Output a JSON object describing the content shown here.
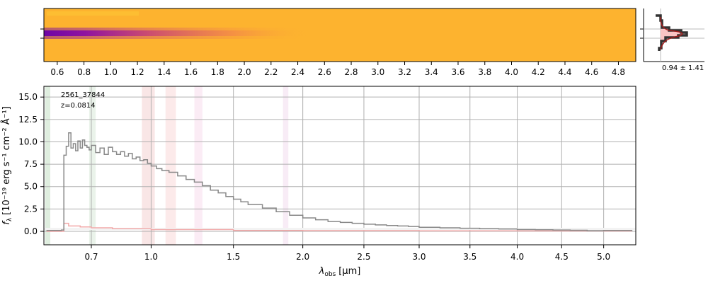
{
  "chart_data": [
    {
      "type": "heatmap",
      "name": "2D spectrum",
      "x_tick_labels": [
        "0.6",
        "0.8",
        "1.0",
        "1.2",
        "1.4",
        "1.6",
        "1.8",
        "2.0",
        "2.2",
        "2.4",
        "2.6",
        "2.8",
        "3.0",
        "3.2",
        "3.4",
        "3.6",
        "3.8",
        "4.0",
        "4.2",
        "4.4",
        "4.6",
        "4.8"
      ],
      "colormap": [
        "#fdb32f",
        "#f48849",
        "#d5546e",
        "#b02991",
        "#8405a7",
        "#5d01a6"
      ],
      "profile_label": "0.94 ± 1.41"
    },
    {
      "type": "line",
      "name": "1D spectrum",
      "source_id": "2561_37844",
      "redshift": "z=0.0814",
      "xlabel_main": "λ",
      "xlabel_sub": "obs",
      "xlabel_unit": "[μm]",
      "ylabel_main": "f",
      "ylabel_sub": "λ",
      "ylabel_unit": "[10⁻¹⁹ erg s⁻¹ cm⁻² Å⁻¹]",
      "x_ticks": [
        "0.7",
        "1.0",
        "1.5",
        "2.0",
        "2.5",
        "3.0",
        "3.5",
        "4.0",
        "4.5",
        "5.0"
      ],
      "x_tick_values": [
        0.7,
        1.0,
        1.5,
        2.0,
        2.5,
        3.0,
        3.5,
        4.0,
        4.5,
        5.0
      ],
      "y_ticks": [
        "0.0",
        "2.5",
        "5.0",
        "7.5",
        "10.0",
        "12.5",
        "15.0"
      ],
      "y_tick_values": [
        0,
        2.5,
        5,
        7.5,
        10,
        12.5,
        15
      ],
      "ylim": [
        -1.5,
        16.2
      ],
      "x_scale": "sqrt",
      "xlim": [
        0.5,
        5.4
      ],
      "series": [
        {
          "name": "flux",
          "color": "#888888",
          "x": [
            0.51,
            0.52,
            0.53,
            0.54,
            0.55,
            0.56,
            0.57,
            0.58,
            0.59,
            0.6,
            0.61,
            0.62,
            0.63,
            0.64,
            0.65,
            0.66,
            0.67,
            0.68,
            0.69,
            0.7,
            0.72,
            0.74,
            0.76,
            0.78,
            0.8,
            0.82,
            0.84,
            0.86,
            0.88,
            0.9,
            0.92,
            0.94,
            0.96,
            0.98,
            1.0,
            1.03,
            1.06,
            1.1,
            1.15,
            1.2,
            1.25,
            1.3,
            1.35,
            1.4,
            1.45,
            1.5,
            1.55,
            1.6,
            1.7,
            1.8,
            1.9,
            2.0,
            2.1,
            2.2,
            2.3,
            2.4,
            2.5,
            2.6,
            2.7,
            2.8,
            2.9,
            3.0,
            3.2,
            3.4,
            3.6,
            3.8,
            4.0,
            4.2,
            4.4,
            4.6,
            4.8,
            5.0,
            5.2,
            5.35
          ],
          "y": [
            0.1,
            0.1,
            0.1,
            0.1,
            0.1,
            0.1,
            0.15,
            8.5,
            9.5,
            11.0,
            9.3,
            9.8,
            9.0,
            10.1,
            9.3,
            10.2,
            9.6,
            9.4,
            9.1,
            9.6,
            8.8,
            9.3,
            8.6,
            9.4,
            8.9,
            8.6,
            8.9,
            8.4,
            8.7,
            8.1,
            8.3,
            7.9,
            8.0,
            7.6,
            7.3,
            7.0,
            6.8,
            6.6,
            6.2,
            5.8,
            5.5,
            5.1,
            4.6,
            4.3,
            3.9,
            3.6,
            3.3,
            3.0,
            2.6,
            2.2,
            1.8,
            1.5,
            1.3,
            1.1,
            1.0,
            0.9,
            0.8,
            0.72,
            0.65,
            0.6,
            0.55,
            0.45,
            0.4,
            0.35,
            0.3,
            0.27,
            0.2,
            0.18,
            0.15,
            0.12,
            0.08,
            0.1,
            0.1,
            0.05
          ]
        },
        {
          "name": "model",
          "color": "#f2a9a9",
          "x": [
            0.51,
            0.55,
            0.58,
            0.6,
            0.65,
            0.7,
            0.8,
            1.0,
            1.5,
            2.0,
            3.0,
            4.0,
            5.0,
            5.35
          ],
          "y": [
            0.0,
            0.0,
            0.9,
            0.6,
            0.5,
            0.4,
            0.3,
            0.2,
            0.1,
            0.08,
            0.06,
            0.05,
            0.04,
            0.03
          ]
        }
      ],
      "bands": [
        {
          "x0": 0.505,
          "x1": 0.525,
          "color": "#d4e8d4"
        },
        {
          "x0": 0.69,
          "x1": 0.72,
          "color": "#e3efe3"
        },
        {
          "x0": 0.95,
          "x1": 1.02,
          "color": "#f7dede"
        },
        {
          "x0": 1.08,
          "x1": 1.14,
          "color": "#fbe3e3"
        },
        {
          "x0": 1.25,
          "x1": 1.3,
          "color": "#f9e6f2"
        },
        {
          "x0": 1.85,
          "x1": 1.89,
          "color": "#f6e6f3"
        }
      ]
    }
  ]
}
